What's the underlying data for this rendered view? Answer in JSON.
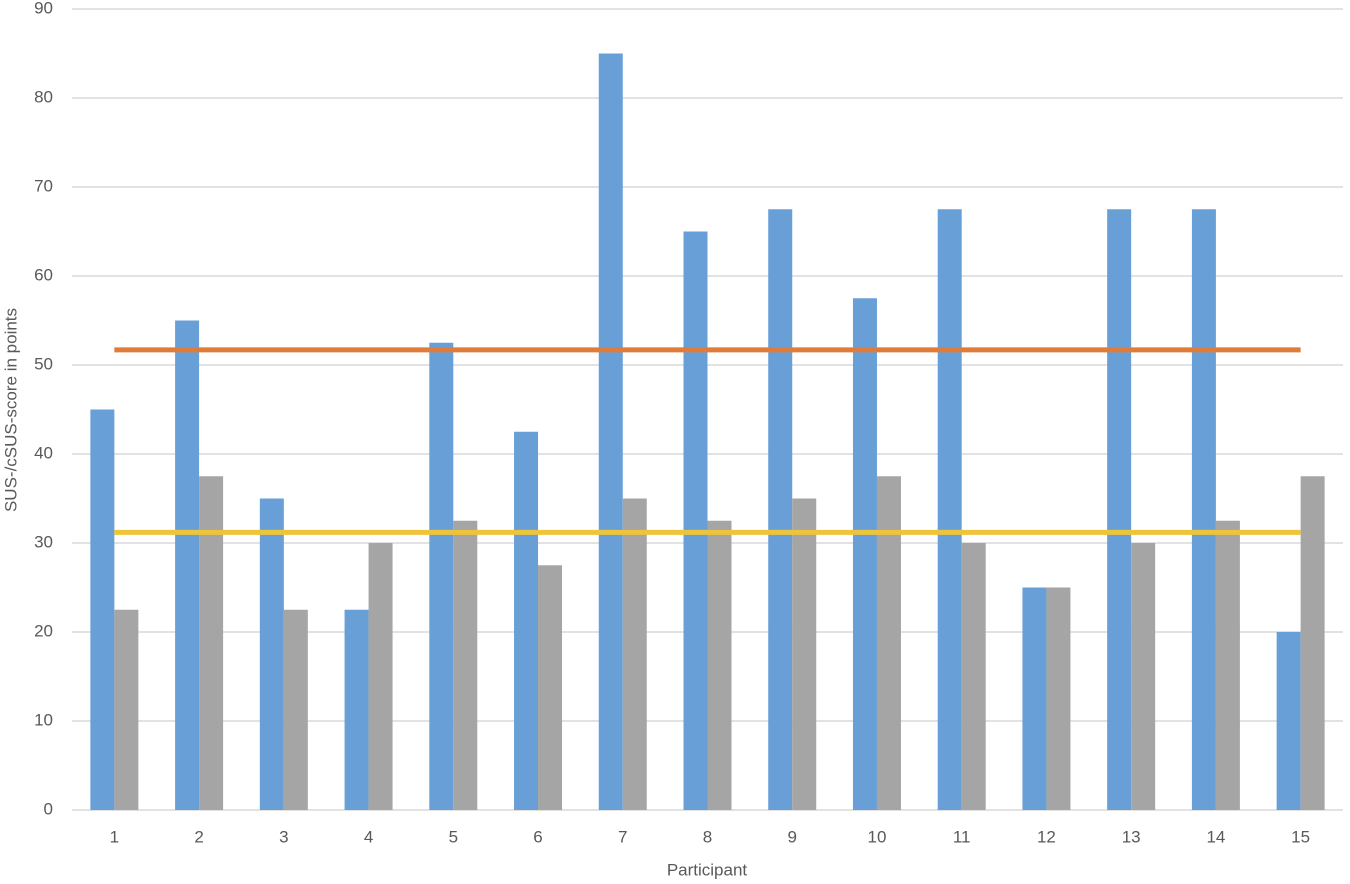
{
  "chart_data": {
    "type": "bar",
    "x_label": "Participant",
    "y_label": "SUS-/cSUS-score in points",
    "categories": [
      "1",
      "2",
      "3",
      "4",
      "5",
      "6",
      "7",
      "8",
      "9",
      "10",
      "11",
      "12",
      "13",
      "14",
      "15"
    ],
    "series": [
      {
        "color": "#689fd6",
        "values": [
          45,
          55,
          35,
          22.5,
          52.5,
          42.5,
          85,
          65,
          67.5,
          57.5,
          67.5,
          25,
          67.5,
          67.5,
          20
        ]
      },
      {
        "color": "#a5a5a5",
        "values": [
          22.5,
          37.5,
          22.5,
          30,
          32.5,
          27.5,
          35,
          32.5,
          35,
          37.5,
          30,
          25,
          30,
          32.5,
          37.5
        ]
      }
    ],
    "hlines": [
      {
        "value": 51.7,
        "color": "#e07b39"
      },
      {
        "value": 31.2,
        "color": "#eec43a"
      }
    ],
    "ylim": [
      0,
      90
    ],
    "yticks": [
      0,
      10,
      20,
      30,
      40,
      50,
      60,
      70,
      80,
      90
    ],
    "grid": true
  }
}
